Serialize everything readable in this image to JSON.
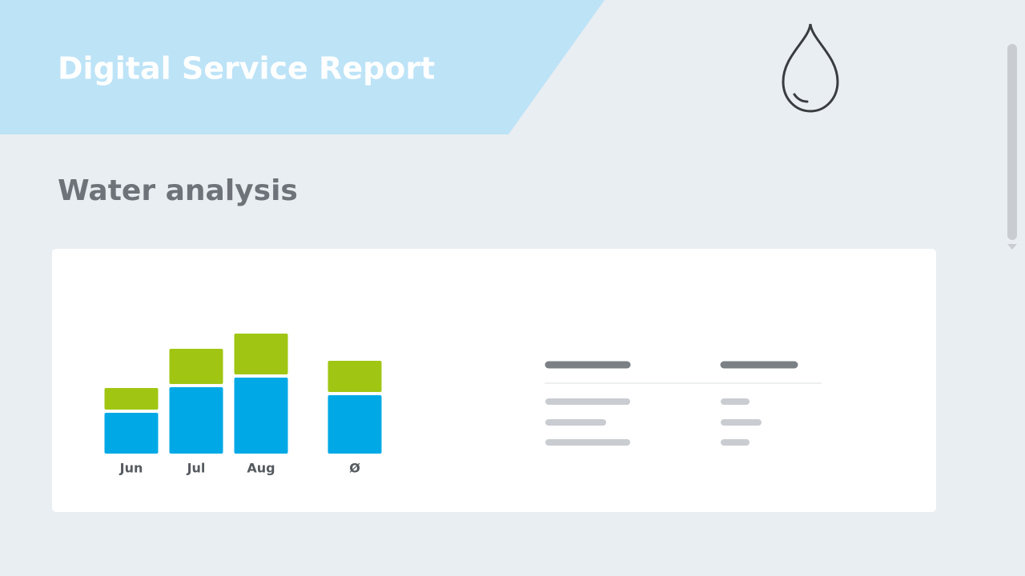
{
  "header": {
    "title": "Digital Service Report"
  },
  "section": {
    "title": "Water analysis"
  },
  "chart_data": {
    "type": "stacked-bar",
    "categories": [
      "Jun",
      "Jul",
      "Aug",
      "Ø"
    ],
    "series": [
      {
        "color": "#00a9e6",
        "values": [
          51,
          83,
          95,
          73
        ]
      },
      {
        "color": "#a0c613",
        "values": [
          27,
          44,
          51,
          39
        ]
      }
    ]
  }
}
